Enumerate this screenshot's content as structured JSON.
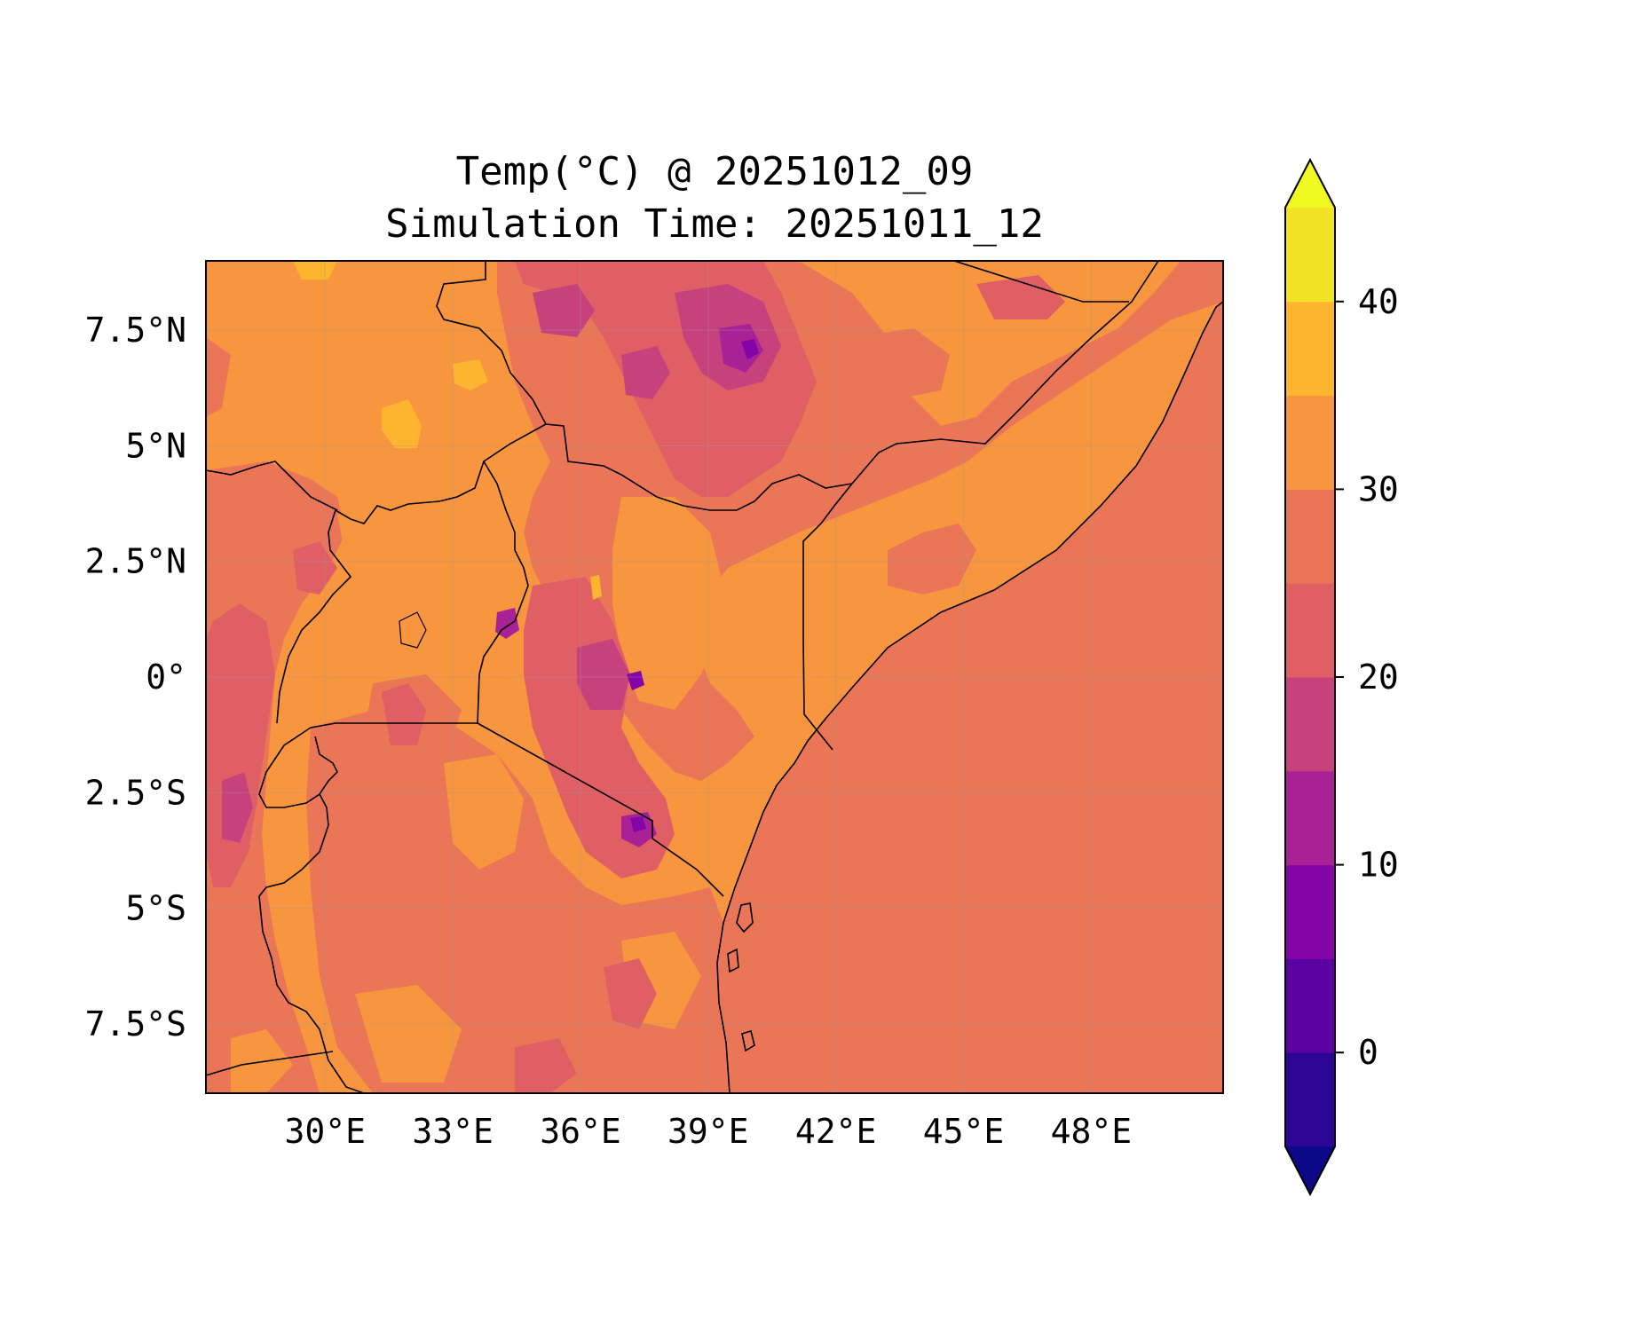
{
  "title": {
    "line1": "Temp(°C) @ 20251012_09",
    "line2": "Simulation Time: 20251011_12"
  },
  "map": {
    "lon_range": [
      27.2,
      51.1
    ],
    "lat_range": [
      -9.0,
      9.0
    ],
    "lon_ticks": [
      {
        "value": 30,
        "label": "30°E"
      },
      {
        "value": 33,
        "label": "33°E"
      },
      {
        "value": 36,
        "label": "36°E"
      },
      {
        "value": 39,
        "label": "39°E"
      },
      {
        "value": 42,
        "label": "42°E"
      },
      {
        "value": 45,
        "label": "45°E"
      },
      {
        "value": 48,
        "label": "48°E"
      }
    ],
    "lat_ticks": [
      {
        "value": 7.5,
        "label": "7.5°N"
      },
      {
        "value": 5,
        "label": "5°N"
      },
      {
        "value": 2.5,
        "label": "2.5°N"
      },
      {
        "value": 0,
        "label": "0°"
      },
      {
        "value": -2.5,
        "label": "2.5°S"
      },
      {
        "value": -5,
        "label": "5°S"
      },
      {
        "value": -7.5,
        "label": "7.5°S"
      }
    ],
    "gridlines": true,
    "ocean_color": "#eb7557",
    "land_base_color": "#f8953f"
  },
  "colorbar": {
    "levels": [
      -5,
      0,
      5,
      10,
      15,
      20,
      25,
      30,
      35,
      40,
      45
    ],
    "colors": [
      "#2c0594",
      "#5b02a3",
      "#8405a7",
      "#a82296",
      "#c7427c",
      "#df5f65",
      "#eb7557",
      "#f8953f",
      "#fdb42f",
      "#f2e325"
    ],
    "under_color": "#0d0887",
    "over_color": "#f0f921",
    "extend": "both",
    "ticks": [
      {
        "value": 0,
        "label": "0"
      },
      {
        "value": 10,
        "label": "10"
      },
      {
        "value": 20,
        "label": "20"
      },
      {
        "value": 30,
        "label": "30"
      },
      {
        "value": 40,
        "label": "40"
      }
    ]
  }
}
